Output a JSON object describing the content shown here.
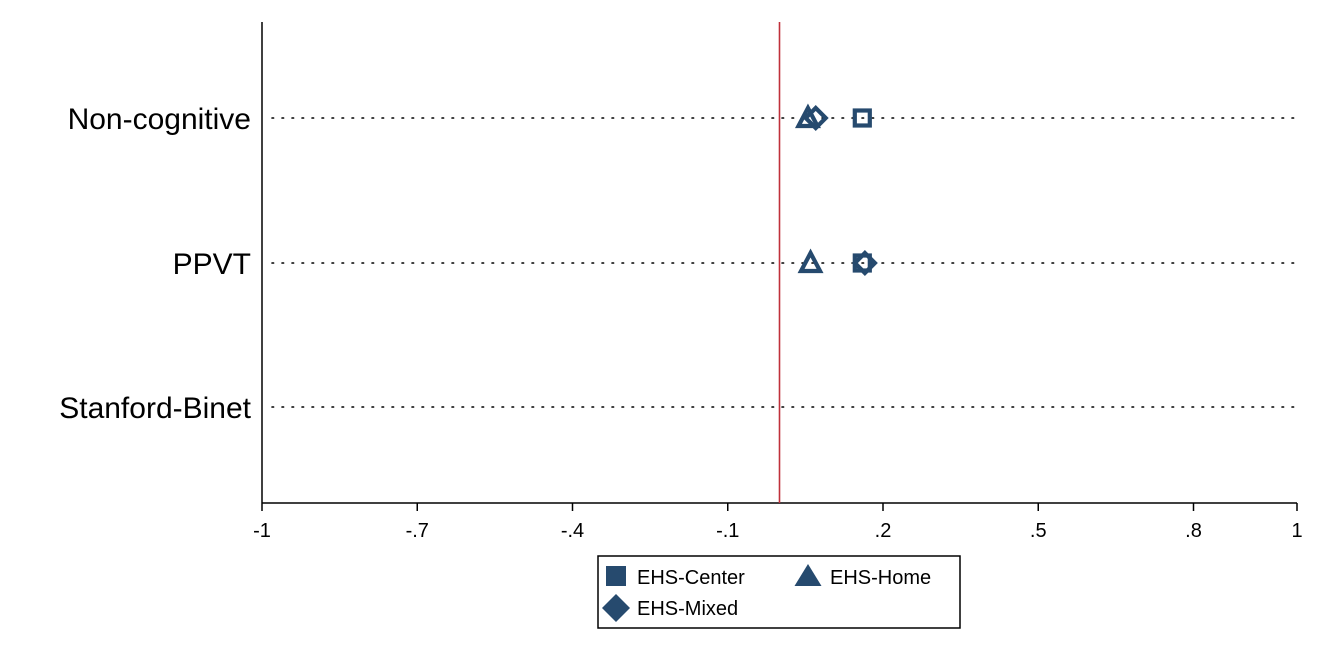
{
  "chart_data": {
    "type": "scatter",
    "categories": [
      "Non-cognitive",
      "PPVT",
      "Stanford-Binet"
    ],
    "xlim": [
      -1,
      1
    ],
    "xticks": [
      -1,
      -0.7,
      -0.4,
      -0.1,
      0.2,
      0.5,
      0.8,
      1
    ],
    "xtick_labels": [
      "-1",
      "-.7",
      "-.4",
      "-.1",
      ".2",
      ".5",
      ".8",
      "1"
    ],
    "reference_line": 0,
    "grid": "dotted horizontal at categories",
    "legend_position": "bottom",
    "colors": {
      "marker": "#264a6e",
      "reference": "#c0303a",
      "axis": "#000000"
    },
    "series": [
      {
        "name": "EHS-Center",
        "marker": "square",
        "values": [
          0.16,
          0.16,
          null
        ]
      },
      {
        "name": "EHS-Home",
        "marker": "triangle",
        "values": [
          0.055,
          0.06,
          null
        ]
      },
      {
        "name": "EHS-Mixed",
        "marker": "diamond",
        "values": [
          0.07,
          0.165,
          null
        ]
      }
    ]
  }
}
